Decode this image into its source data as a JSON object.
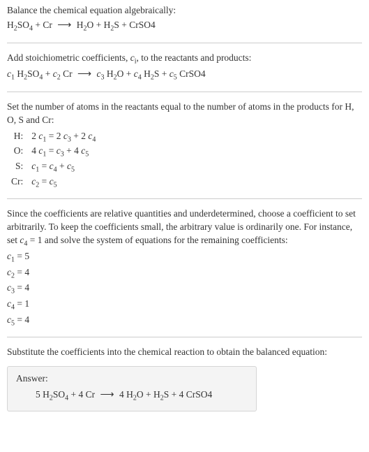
{
  "colors": {
    "text": "#333333",
    "background": "#ffffff",
    "divider": "#cccccc",
    "answer_bg": "#f4f4f4",
    "answer_border": "#d5d5d5"
  },
  "typography": {
    "font_family": "Georgia, 'Times New Roman', serif",
    "body_fontsize": 13.5,
    "sub_fontsize": 10
  },
  "section1": {
    "title": "Balance the chemical equation algebraically:",
    "eq_lhs_1": "H",
    "eq_lhs_1s": "2",
    "eq_lhs_2": "SO",
    "eq_lhs_2s": "4",
    "eq_plus1": " + Cr",
    "arrow": "⟶",
    "eq_rhs_1": "H",
    "eq_rhs_1s": "2",
    "eq_rhs_2": "O + H",
    "eq_rhs_2s": "2",
    "eq_rhs_3": "S + CrSO4"
  },
  "section2": {
    "line1a": "Add stoichiometric coefficients, ",
    "ci": "c",
    "ci_s": "i",
    "line1b": ", to the reactants and products:",
    "c1": "c",
    "c1s": "1",
    "sp1": " H",
    "sp1s": "2",
    "sp2": "SO",
    "sp2s": "4",
    "plus1": " + ",
    "c2": "c",
    "c2s": "2",
    "sp3": " Cr",
    "arrow": "⟶",
    "c3": "c",
    "c3s": "3",
    "sp4": " H",
    "sp4s": "2",
    "sp5": "O + ",
    "c4": "c",
    "c4s": "4",
    "sp6": " H",
    "sp6s": "2",
    "sp7": "S + ",
    "c5": "c",
    "c5s": "5",
    "sp8": " CrSO4"
  },
  "section3": {
    "intro": "Set the number of atoms in the reactants equal to the number of atoms in the products for H, O, S and Cr:",
    "rows": {
      "h_label": "H:",
      "h_eq_a": "2 ",
      "h_c1": "c",
      "h_c1s": "1",
      "h_mid": " = 2 ",
      "h_c3": "c",
      "h_c3s": "3",
      "h_mid2": " + 2 ",
      "h_c4": "c",
      "h_c4s": "4",
      "o_label": "O:",
      "o_eq_a": "4 ",
      "o_c1": "c",
      "o_c1s": "1",
      "o_mid": " = ",
      "o_c3": "c",
      "o_c3s": "3",
      "o_mid2": " + 4 ",
      "o_c5": "c",
      "o_c5s": "5",
      "s_label": "S:",
      "s_c1": "c",
      "s_c1s": "1",
      "s_mid": " = ",
      "s_c4": "c",
      "s_c4s": "4",
      "s_mid2": " + ",
      "s_c5": "c",
      "s_c5s": "5",
      "cr_label": "Cr:",
      "cr_c2": "c",
      "cr_c2s": "2",
      "cr_mid": " = ",
      "cr_c5": "c",
      "cr_c5s": "5"
    }
  },
  "section4": {
    "p1a": "Since the coefficients are relative quantities and underdetermined, choose a coefficient to set arbitrarily. To keep the coefficients small, the arbitrary value is ordinarily one. For instance, set ",
    "c4": "c",
    "c4s": "4",
    "p1b": " = 1 and solve the system of equations for the remaining coefficients:",
    "l1a": "c",
    "l1s": "1",
    "l1v": " = 5",
    "l2a": "c",
    "l2s": "2",
    "l2v": " = 4",
    "l3a": "c",
    "l3s": "3",
    "l3v": " = 4",
    "l4a": "c",
    "l4s": "4",
    "l4v": " = 1",
    "l5a": "c",
    "l5s": "5",
    "l5v": " = 4"
  },
  "section5": {
    "intro": "Substitute the coefficients into the chemical reaction to obtain the balanced equation:",
    "answer_label": "Answer:",
    "a_1": "5 H",
    "a_1s": "2",
    "a_2": "SO",
    "a_2s": "4",
    "a_3": " + 4 Cr",
    "arrow": "⟶",
    "a_4": "4 H",
    "a_4s": "2",
    "a_5": "O + H",
    "a_5s": "2",
    "a_6": "S + 4 CrSO4"
  }
}
